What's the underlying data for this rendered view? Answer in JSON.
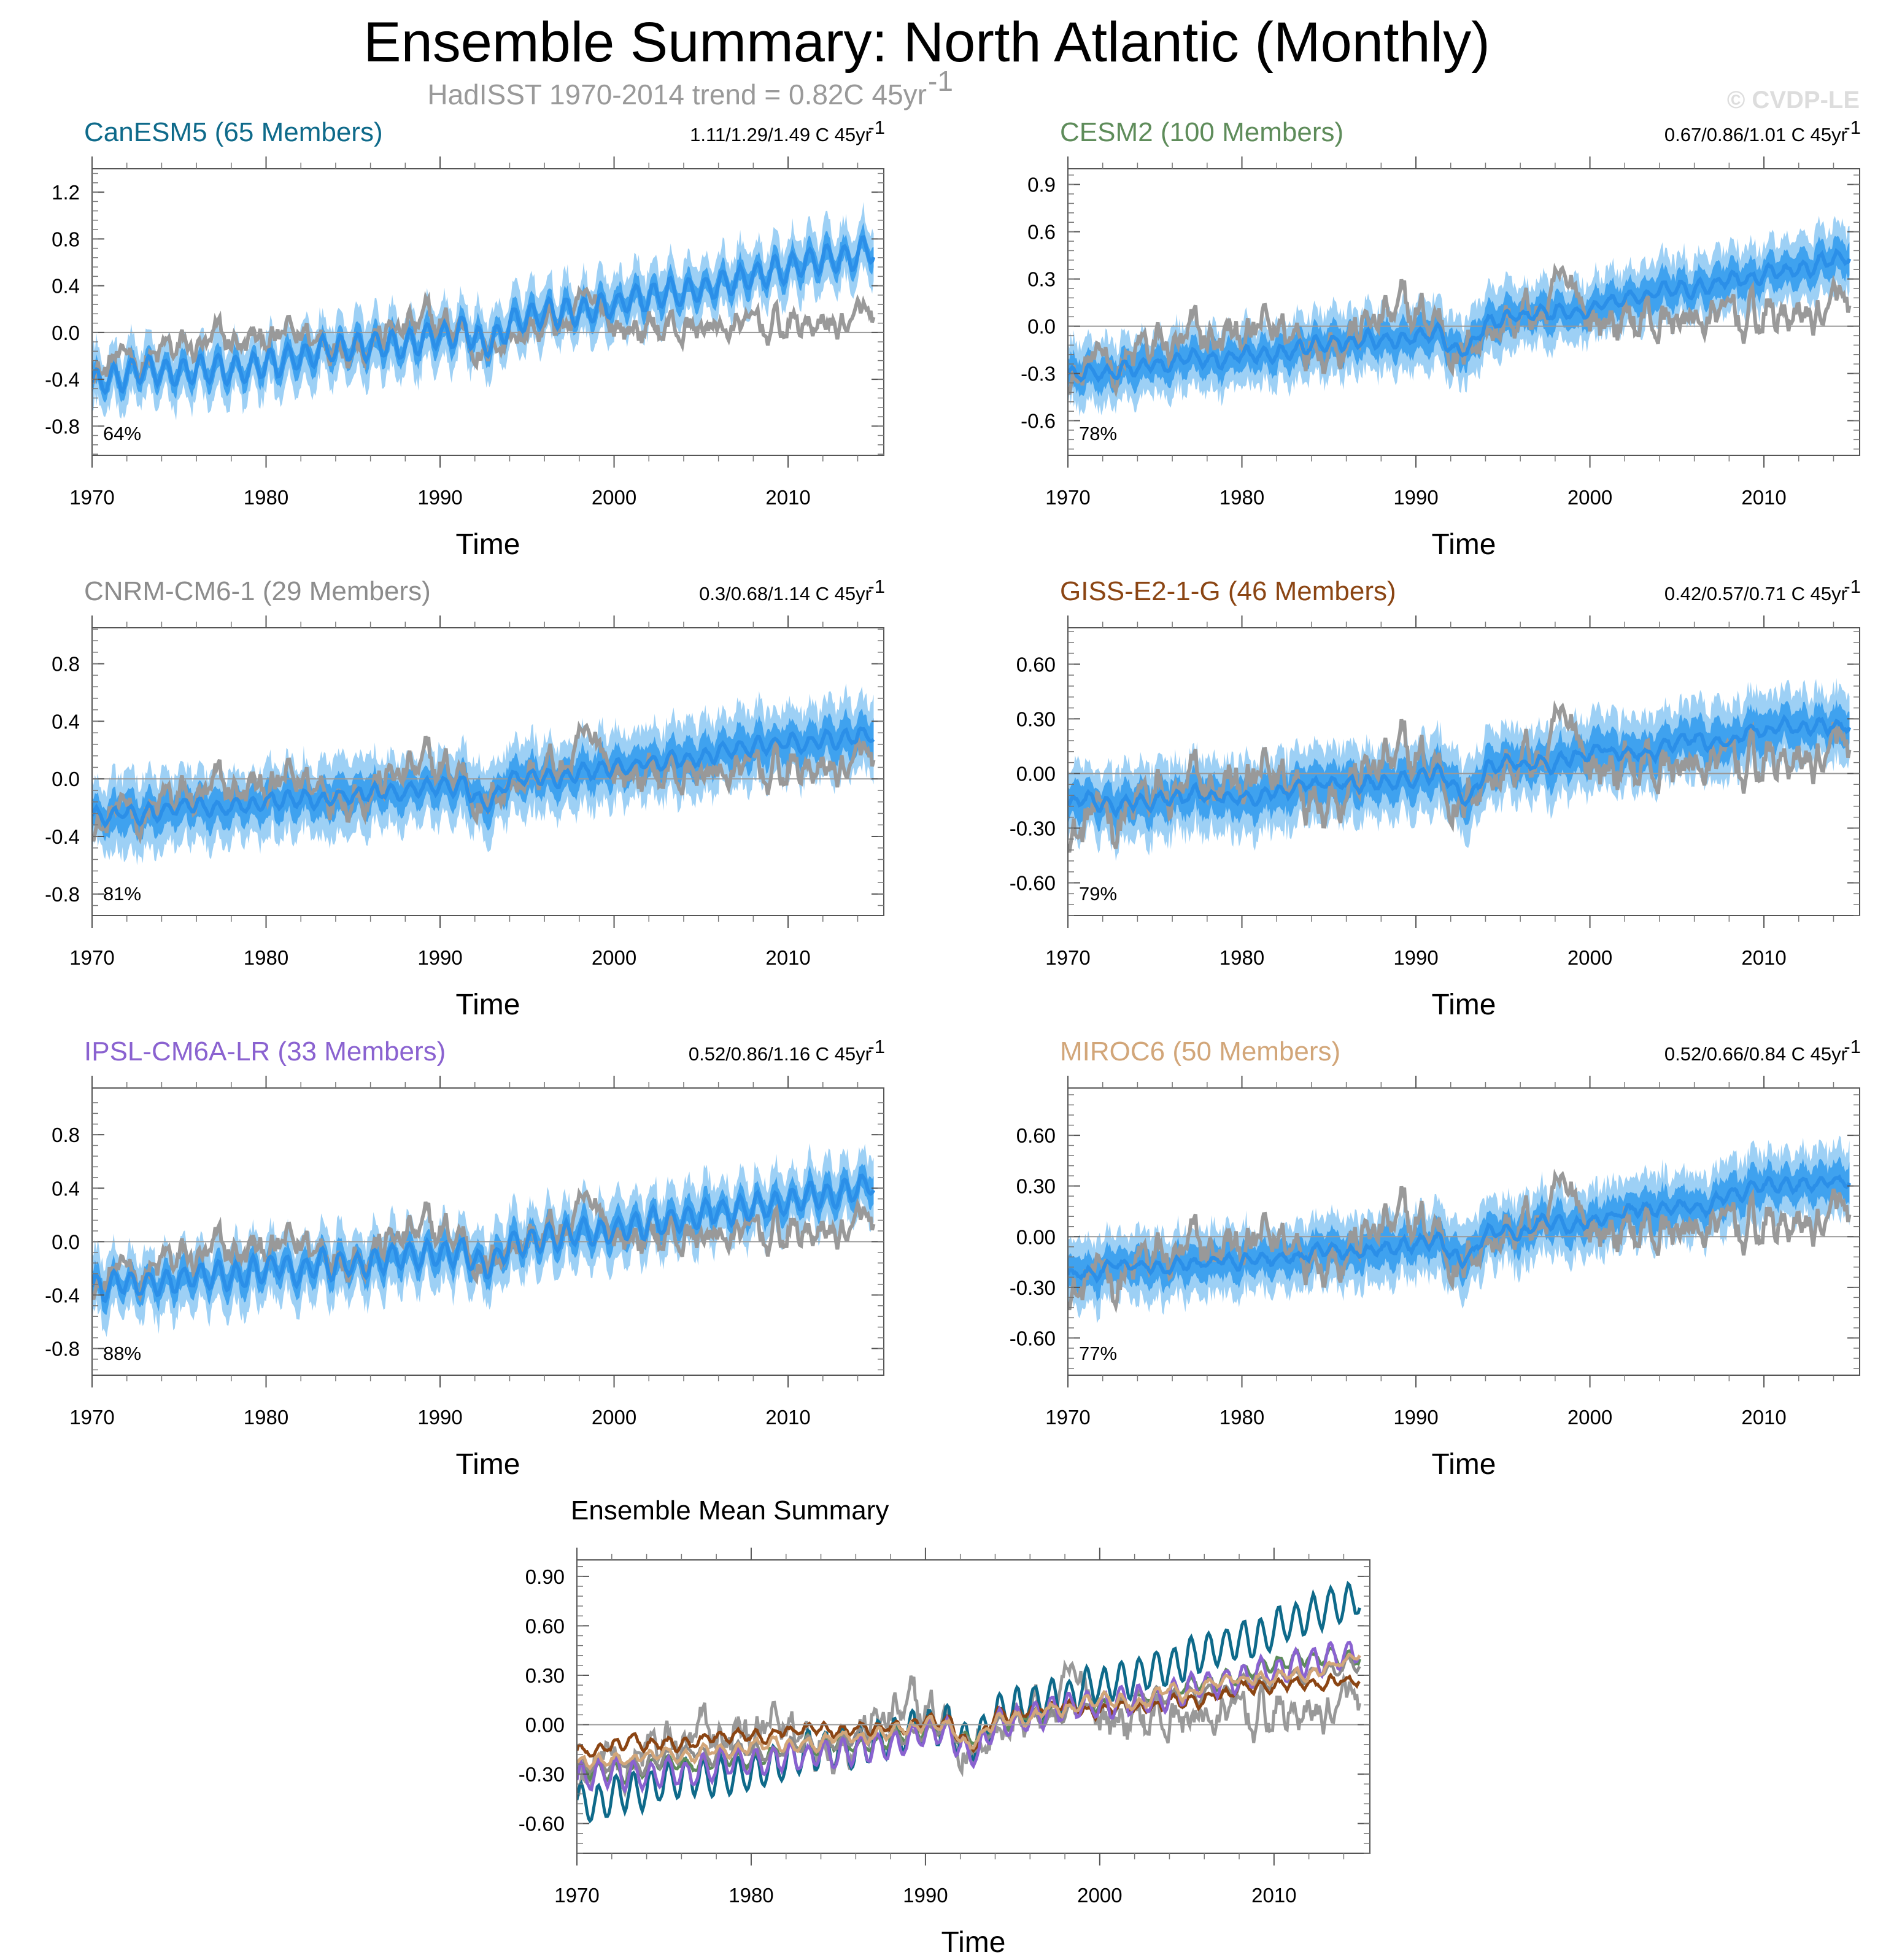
{
  "figure": {
    "title": "Ensemble Summary: North Atlantic (Monthly)",
    "subtitle": "HadISST 1970-2014 trend = 0.82C 45yr",
    "subtitle_sup": "-1",
    "copyright": "© CVDP-LE"
  },
  "colors": {
    "obs": "#999999",
    "band_outer": "#9dd0f5",
    "band_inner": "#3fa2ef",
    "mean": "#2b8fe8",
    "zero_line": "#999999"
  },
  "chart_data": [
    {
      "type": "line",
      "id": "canesm5",
      "title": "CanESM5 (65 Members)",
      "title_color": "#0e6a8a",
      "trend": "1.11/1.29/1.49 C 45yr",
      "trend_sup": "-1",
      "xlabel": "Time",
      "xlim": [
        1970,
        2015.5
      ],
      "ylim": [
        -1.05,
        1.4
      ],
      "yticks": [
        "1.2",
        "0.8",
        "0.4",
        "0.0",
        "-0.4",
        "-0.8"
      ],
      "ytick_values": [
        1.2,
        0.8,
        0.4,
        0.0,
        -0.4,
        -0.8
      ],
      "xticks": [
        "1970",
        "1980",
        "1990",
        "2000",
        "2010"
      ],
      "xtick_values": [
        1970,
        1980,
        1990,
        2000,
        2010
      ],
      "percent": "64%",
      "mean_start": -0.42,
      "mean_end": 0.72,
      "seasonal_amp": 0.11,
      "band_inner": 0.1,
      "band_outer": 0.24
    },
    {
      "type": "line",
      "id": "cesm2",
      "title": "CESM2 (100 Members)",
      "title_color": "#5e8c5a",
      "trend": "0.67/0.86/1.01 C 45yr",
      "trend_sup": "-1",
      "xlabel": "Time",
      "xlim": [
        1970,
        2015.5
      ],
      "ylim": [
        -0.82,
        1.0
      ],
      "yticks": [
        "0.9",
        "0.6",
        "0.3",
        "0.0",
        "-0.3",
        "-0.6"
      ],
      "ytick_values": [
        0.9,
        0.6,
        0.3,
        0.0,
        -0.3,
        -0.6
      ],
      "xticks": [
        "1970",
        "1980",
        "1990",
        "2000",
        "2010"
      ],
      "xtick_values": [
        1970,
        1980,
        1990,
        2000,
        2010
      ],
      "percent": "78%",
      "mean_start": -0.3,
      "mean_end": 0.45,
      "seasonal_amp": 0.04,
      "band_inner": 0.1,
      "band_outer": 0.2
    },
    {
      "type": "line",
      "id": "cnrm",
      "title": "CNRM-CM6-1 (29 Members)",
      "title_color": "#8c8c8c",
      "trend": "0.3/0.68/1.14 C 45yr",
      "trend_sup": "-1",
      "xlabel": "Time",
      "xlim": [
        1970,
        2015.5
      ],
      "ylim": [
        -0.95,
        1.05
      ],
      "yticks": [
        "0.8",
        "0.4",
        "0.0",
        "-0.4",
        "-0.8"
      ],
      "ytick_values": [
        0.8,
        0.4,
        0.0,
        -0.4,
        -0.8
      ],
      "xticks": [
        "1970",
        "1980",
        "1990",
        "2000",
        "2010"
      ],
      "xtick_values": [
        1970,
        1980,
        1990,
        2000,
        2010
      ],
      "percent": "81%",
      "mean_start": -0.25,
      "mean_end": 0.32,
      "seasonal_amp": 0.05,
      "band_inner": 0.12,
      "band_outer": 0.25
    },
    {
      "type": "line",
      "id": "giss",
      "title": "GISS-E2-1-G (46 Members)",
      "title_color": "#8b4513",
      "trend": "0.42/0.57/0.71 C 45yr",
      "trend_sup": "-1",
      "xlabel": "Time",
      "xlim": [
        1970,
        2015.5
      ],
      "ylim": [
        -0.78,
        0.8
      ],
      "yticks": [
        "0.60",
        "0.30",
        "0.00",
        "-0.30",
        "-0.60"
      ],
      "ytick_values": [
        0.6,
        0.3,
        0.0,
        -0.3,
        -0.6
      ],
      "xticks": [
        "1970",
        "1980",
        "1990",
        "2000",
        "2010"
      ],
      "xtick_values": [
        1970,
        1980,
        1990,
        2000,
        2010
      ],
      "percent": "79%",
      "mean_start": -0.17,
      "mean_end": 0.3,
      "seasonal_amp": 0.03,
      "band_inner": 0.1,
      "band_outer": 0.2
    },
    {
      "type": "line",
      "id": "ipsl",
      "title": "IPSL-CM6A-LR (33 Members)",
      "title_color": "#8a62d0",
      "trend": "0.52/0.86/1.16 C 45yr",
      "trend_sup": "-1",
      "xlabel": "Time",
      "xlim": [
        1970,
        2015.5
      ],
      "ylim": [
        -1.0,
        1.15
      ],
      "yticks": [
        "0.8",
        "0.4",
        "0.0",
        "-0.4",
        "-0.8"
      ],
      "ytick_values": [
        0.8,
        0.4,
        0.0,
        -0.4,
        -0.8
      ],
      "xticks": [
        "1970",
        "1980",
        "1990",
        "2000",
        "2010"
      ],
      "xtick_values": [
        1970,
        1980,
        1990,
        2000,
        2010
      ],
      "percent": "88%",
      "mean_start": -0.33,
      "mean_end": 0.42,
      "seasonal_amp": 0.09,
      "band_inner": 0.1,
      "band_outer": 0.23
    },
    {
      "type": "line",
      "id": "miroc6",
      "title": "MIROC6 (50 Members)",
      "title_color": "#d2a679",
      "trend": "0.52/0.66/0.84 C 45yr",
      "trend_sup": "-1",
      "xlabel": "Time",
      "xlim": [
        1970,
        2015.5
      ],
      "ylim": [
        -0.82,
        0.88
      ],
      "yticks": [
        "0.60",
        "0.30",
        "0.00",
        "-0.30",
        "-0.60"
      ],
      "ytick_values": [
        0.6,
        0.3,
        0.0,
        -0.3,
        -0.6
      ],
      "xticks": [
        "1970",
        "1980",
        "1990",
        "2000",
        "2010"
      ],
      "xtick_values": [
        1970,
        1980,
        1990,
        2000,
        2010
      ],
      "percent": "77%",
      "mean_start": -0.22,
      "mean_end": 0.36,
      "seasonal_amp": 0.03,
      "band_inner": 0.1,
      "band_outer": 0.2
    },
    {
      "type": "line",
      "id": "summary",
      "title": "Ensemble Mean Summary",
      "title_color": "#000000",
      "xlabel": "Time",
      "xlim": [
        1970,
        2015.5
      ],
      "ylim": [
        -0.78,
        1.0
      ],
      "yticks": [
        "0.90",
        "0.60",
        "0.30",
        "0.00",
        "-0.30",
        "-0.60"
      ],
      "ytick_values": [
        0.9,
        0.6,
        0.3,
        0.0,
        -0.3,
        -0.6
      ],
      "xticks": [
        "1970",
        "1980",
        "1990",
        "2000",
        "2010"
      ],
      "xtick_values": [
        1970,
        1980,
        1990,
        2000,
        2010
      ],
      "series": [
        {
          "name": "CanESM5",
          "color": "#0e6a8a",
          "start": -0.45,
          "end": 0.78,
          "seasonal_amp": 0.11
        },
        {
          "name": "CESM2",
          "color": "#5e8c5a",
          "start": -0.3,
          "end": 0.45,
          "seasonal_amp": 0.04
        },
        {
          "name": "CNRM-CM6-1",
          "color": "#8c8c8c",
          "start": -0.25,
          "end": 0.35,
          "seasonal_amp": 0.04
        },
        {
          "name": "GISS-E2-1-G",
          "color": "#8b4513",
          "start": -0.15,
          "end": 0.3,
          "seasonal_amp": 0.03
        },
        {
          "name": "IPSL-CM6A-LR",
          "color": "#8a62d0",
          "start": -0.33,
          "end": 0.45,
          "seasonal_amp": 0.08
        },
        {
          "name": "MIROC6",
          "color": "#d2a679",
          "start": -0.22,
          "end": 0.38,
          "seasonal_amp": 0.03
        }
      ]
    }
  ]
}
